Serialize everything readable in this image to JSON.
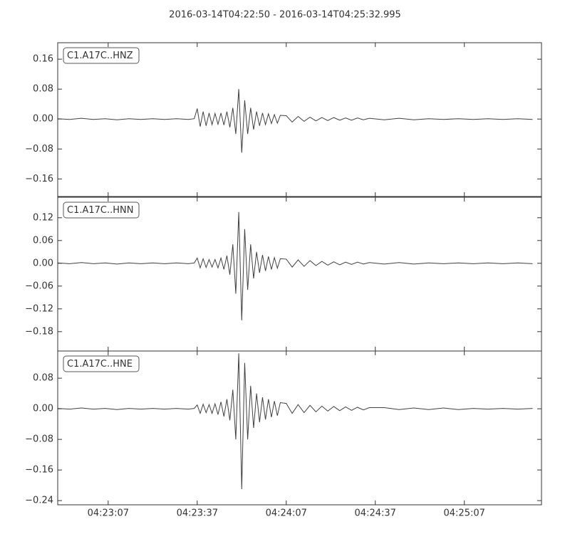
{
  "chart_data": {
    "type": "line",
    "title": "2016-03-14T04:22:50  -  2016-03-14T04:25:32.995",
    "xlim": [
      "04:22:50",
      "04:25:32.995"
    ],
    "xticks": [
      "04:23:07",
      "04:23:37",
      "04:24:07",
      "04:24:37",
      "04:25:07"
    ],
    "x": [
      "04:22:50",
      "04:22:54",
      "04:22:58",
      "04:23:02",
      "04:23:06",
      "04:23:10",
      "04:23:14",
      "04:23:18",
      "04:23:22",
      "04:23:26",
      "04:23:30",
      "04:23:34",
      "04:23:36",
      "04:23:37",
      "04:23:38",
      "04:23:39",
      "04:23:40",
      "04:23:41",
      "04:23:42",
      "04:23:43",
      "04:23:44",
      "04:23:45",
      "04:23:46",
      "04:23:47",
      "04:23:48",
      "04:23:49",
      "04:23:50",
      "04:23:51",
      "04:23:52",
      "04:23:53",
      "04:23:54",
      "04:23:55",
      "04:23:56",
      "04:23:57",
      "04:23:58",
      "04:23:59",
      "04:24:00",
      "04:24:01",
      "04:24:02",
      "04:24:03",
      "04:24:04",
      "04:24:05",
      "04:24:07",
      "04:24:09",
      "04:24:11",
      "04:24:13",
      "04:24:15",
      "04:24:17",
      "04:24:19",
      "04:24:21",
      "04:24:23",
      "04:24:25",
      "04:24:27",
      "04:24:29",
      "04:24:31",
      "04:24:33",
      "04:24:35",
      "04:24:40",
      "04:24:45",
      "04:24:50",
      "04:24:55",
      "04:25:00",
      "04:25:05",
      "04:25:10",
      "04:25:15",
      "04:25:20",
      "04:25:25",
      "04:25:30"
    ],
    "panels": [
      {
        "ylim": [
          -0.207,
          0.204
        ],
        "yticks": [
          {
            "value": -0.16,
            "label": "−0.16"
          },
          {
            "value": -0.08,
            "label": "−0.08"
          },
          {
            "value": 0,
            "label": "0.00"
          },
          0.08,
          0.16
        ],
        "series": [
          {
            "name": "C1.A17C..HNZ",
            "color": "#404040",
            "values": [
              0.001,
              -0.001,
              0.002,
              -0.001,
              0.001,
              -0.002,
              0.001,
              -0.001,
              0.001,
              -0.001,
              0.001,
              -0.001,
              0.001,
              0.028,
              -0.02,
              0.02,
              -0.018,
              0.016,
              -0.015,
              0.015,
              -0.014,
              0.016,
              -0.016,
              0.02,
              -0.022,
              0.03,
              -0.04,
              0.08,
              -0.09,
              0.05,
              -0.04,
              0.03,
              -0.028,
              0.02,
              -0.018,
              0.016,
              -0.015,
              0.014,
              -0.012,
              0.012,
              -0.011,
              0.01,
              0.009,
              -0.008,
              0.007,
              -0.006,
              0.005,
              -0.005,
              0.004,
              -0.004,
              0.004,
              -0.003,
              0.003,
              -0.003,
              0.003,
              -0.002,
              0.002,
              -0.002,
              0.002,
              -0.002,
              0.001,
              -0.001,
              0.001,
              -0.001,
              0.001,
              -0.001,
              0.001,
              -0.001
            ]
          }
        ]
      },
      {
        "ylim": [
          -0.231,
          0.174
        ],
        "yticks": [
          {
            "value": -0.18,
            "label": "−0.18"
          },
          {
            "value": -0.12,
            "label": "−0.12"
          },
          {
            "value": -0.06,
            "label": "−0.06"
          },
          {
            "value": 0,
            "label": "0.00"
          },
          0.06,
          0.12
        ],
        "series": [
          {
            "name": "C1.A17C..HNN",
            "color": "#404040",
            "values": [
              0.001,
              -0.001,
              0.002,
              -0.001,
              0.001,
              -0.002,
              0.001,
              -0.001,
              0.001,
              -0.001,
              0.001,
              -0.001,
              0.001,
              0.014,
              -0.012,
              0.012,
              -0.011,
              0.01,
              -0.01,
              0.01,
              -0.012,
              0.014,
              -0.016,
              0.02,
              -0.03,
              0.05,
              -0.08,
              0.135,
              -0.15,
              0.09,
              -0.07,
              0.05,
              -0.04,
              0.03,
              -0.025,
              0.022,
              -0.02,
              0.018,
              -0.016,
              0.015,
              -0.013,
              0.012,
              0.011,
              -0.01,
              0.009,
              -0.008,
              0.007,
              -0.006,
              0.005,
              -0.005,
              0.004,
              -0.004,
              0.003,
              -0.003,
              0.003,
              -0.002,
              0.002,
              -0.002,
              0.002,
              -0.002,
              0.001,
              -0.001,
              0.001,
              -0.001,
              0.001,
              -0.001,
              0.001,
              -0.001
            ]
          }
        ]
      },
      {
        "ylim": [
          -0.251,
          0.151
        ],
        "yticks": [
          {
            "value": -0.24,
            "label": "−0.24"
          },
          {
            "value": -0.16,
            "label": "−0.16"
          },
          {
            "value": -0.08,
            "label": "−0.08"
          },
          {
            "value": 0,
            "label": "0.00"
          },
          0.08
        ],
        "series": [
          {
            "name": "C1.A17C..HNE",
            "color": "#404040",
            "values": [
              0.001,
              -0.001,
              0.002,
              -0.001,
              0.001,
              -0.002,
              0.001,
              -0.001,
              0.001,
              -0.001,
              0.001,
              -0.001,
              0.001,
              0.01,
              -0.012,
              0.012,
              -0.01,
              0.011,
              -0.012,
              0.013,
              -0.015,
              0.018,
              -0.02,
              0.025,
              -0.03,
              0.05,
              -0.08,
              0.145,
              -0.21,
              0.12,
              -0.08,
              0.06,
              -0.05,
              0.04,
              -0.035,
              0.03,
              -0.028,
              0.025,
              -0.022,
              0.02,
              -0.018,
              0.016,
              0.014,
              -0.012,
              0.011,
              -0.01,
              0.009,
              -0.008,
              0.007,
              -0.006,
              0.006,
              -0.005,
              0.005,
              -0.004,
              0.004,
              -0.003,
              0.003,
              0.003,
              -0.002,
              0.002,
              -0.002,
              0.002,
              -0.002,
              0.001,
              -0.001,
              0.001,
              -0.001,
              0.001
            ]
          }
        ]
      }
    ]
  }
}
